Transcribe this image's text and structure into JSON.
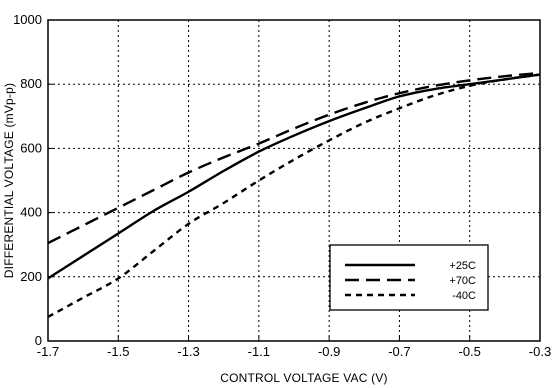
{
  "chart_data": {
    "type": "line",
    "title": "",
    "xlabel": "CONTROL VOLTAGE VAC (V)",
    "ylabel": "DIFFERENTIAL VOLTAGE (mVp-p)",
    "xlim": [
      -1.7,
      -0.3
    ],
    "ylim": [
      0,
      1000
    ],
    "x_ticks": [
      -1.7,
      -1.5,
      -1.3,
      -1.1,
      -0.9,
      -0.7,
      -0.5,
      -0.3
    ],
    "x_tick_labels": [
      "-1.7",
      "-1.5",
      "-1.3",
      "-1.1",
      "-0.9",
      "-0.7",
      "-0.5",
      "-0.3"
    ],
    "y_ticks": [
      0,
      200,
      400,
      600,
      800,
      1000
    ],
    "y_tick_labels": [
      "0",
      "200",
      "400",
      "600",
      "800",
      "1000"
    ],
    "grid": true,
    "legend_position": "bottom-right",
    "series": [
      {
        "name": "+25C",
        "style": "solid",
        "x": [
          -1.7,
          -1.6,
          -1.5,
          -1.4,
          -1.3,
          -1.2,
          -1.1,
          -1.0,
          -0.9,
          -0.8,
          -0.7,
          -0.6,
          -0.5,
          -0.4,
          -0.3
        ],
        "y": [
          195,
          265,
          335,
          405,
          465,
          530,
          590,
          640,
          685,
          725,
          762,
          785,
          800,
          815,
          830
        ]
      },
      {
        "name": "+70C",
        "style": "long-dash",
        "x": [
          -1.7,
          -1.6,
          -1.5,
          -1.4,
          -1.3,
          -1.2,
          -1.1,
          -1.0,
          -0.9,
          -0.8,
          -0.7,
          -0.6,
          -0.5,
          -0.4,
          -0.3
        ],
        "y": [
          305,
          360,
          415,
          470,
          525,
          572,
          615,
          662,
          705,
          742,
          772,
          795,
          812,
          825,
          835
        ]
      },
      {
        "name": "-40C",
        "style": "short-dash",
        "x": [
          -1.7,
          -1.6,
          -1.5,
          -1.4,
          -1.3,
          -1.2,
          -1.1,
          -1.0,
          -0.9,
          -0.8,
          -0.7,
          -0.6,
          -0.5,
          -0.4,
          -0.3
        ],
        "y": [
          75,
          135,
          195,
          280,
          365,
          430,
          500,
          565,
          625,
          680,
          725,
          765,
          795,
          815,
          830
        ]
      }
    ]
  }
}
